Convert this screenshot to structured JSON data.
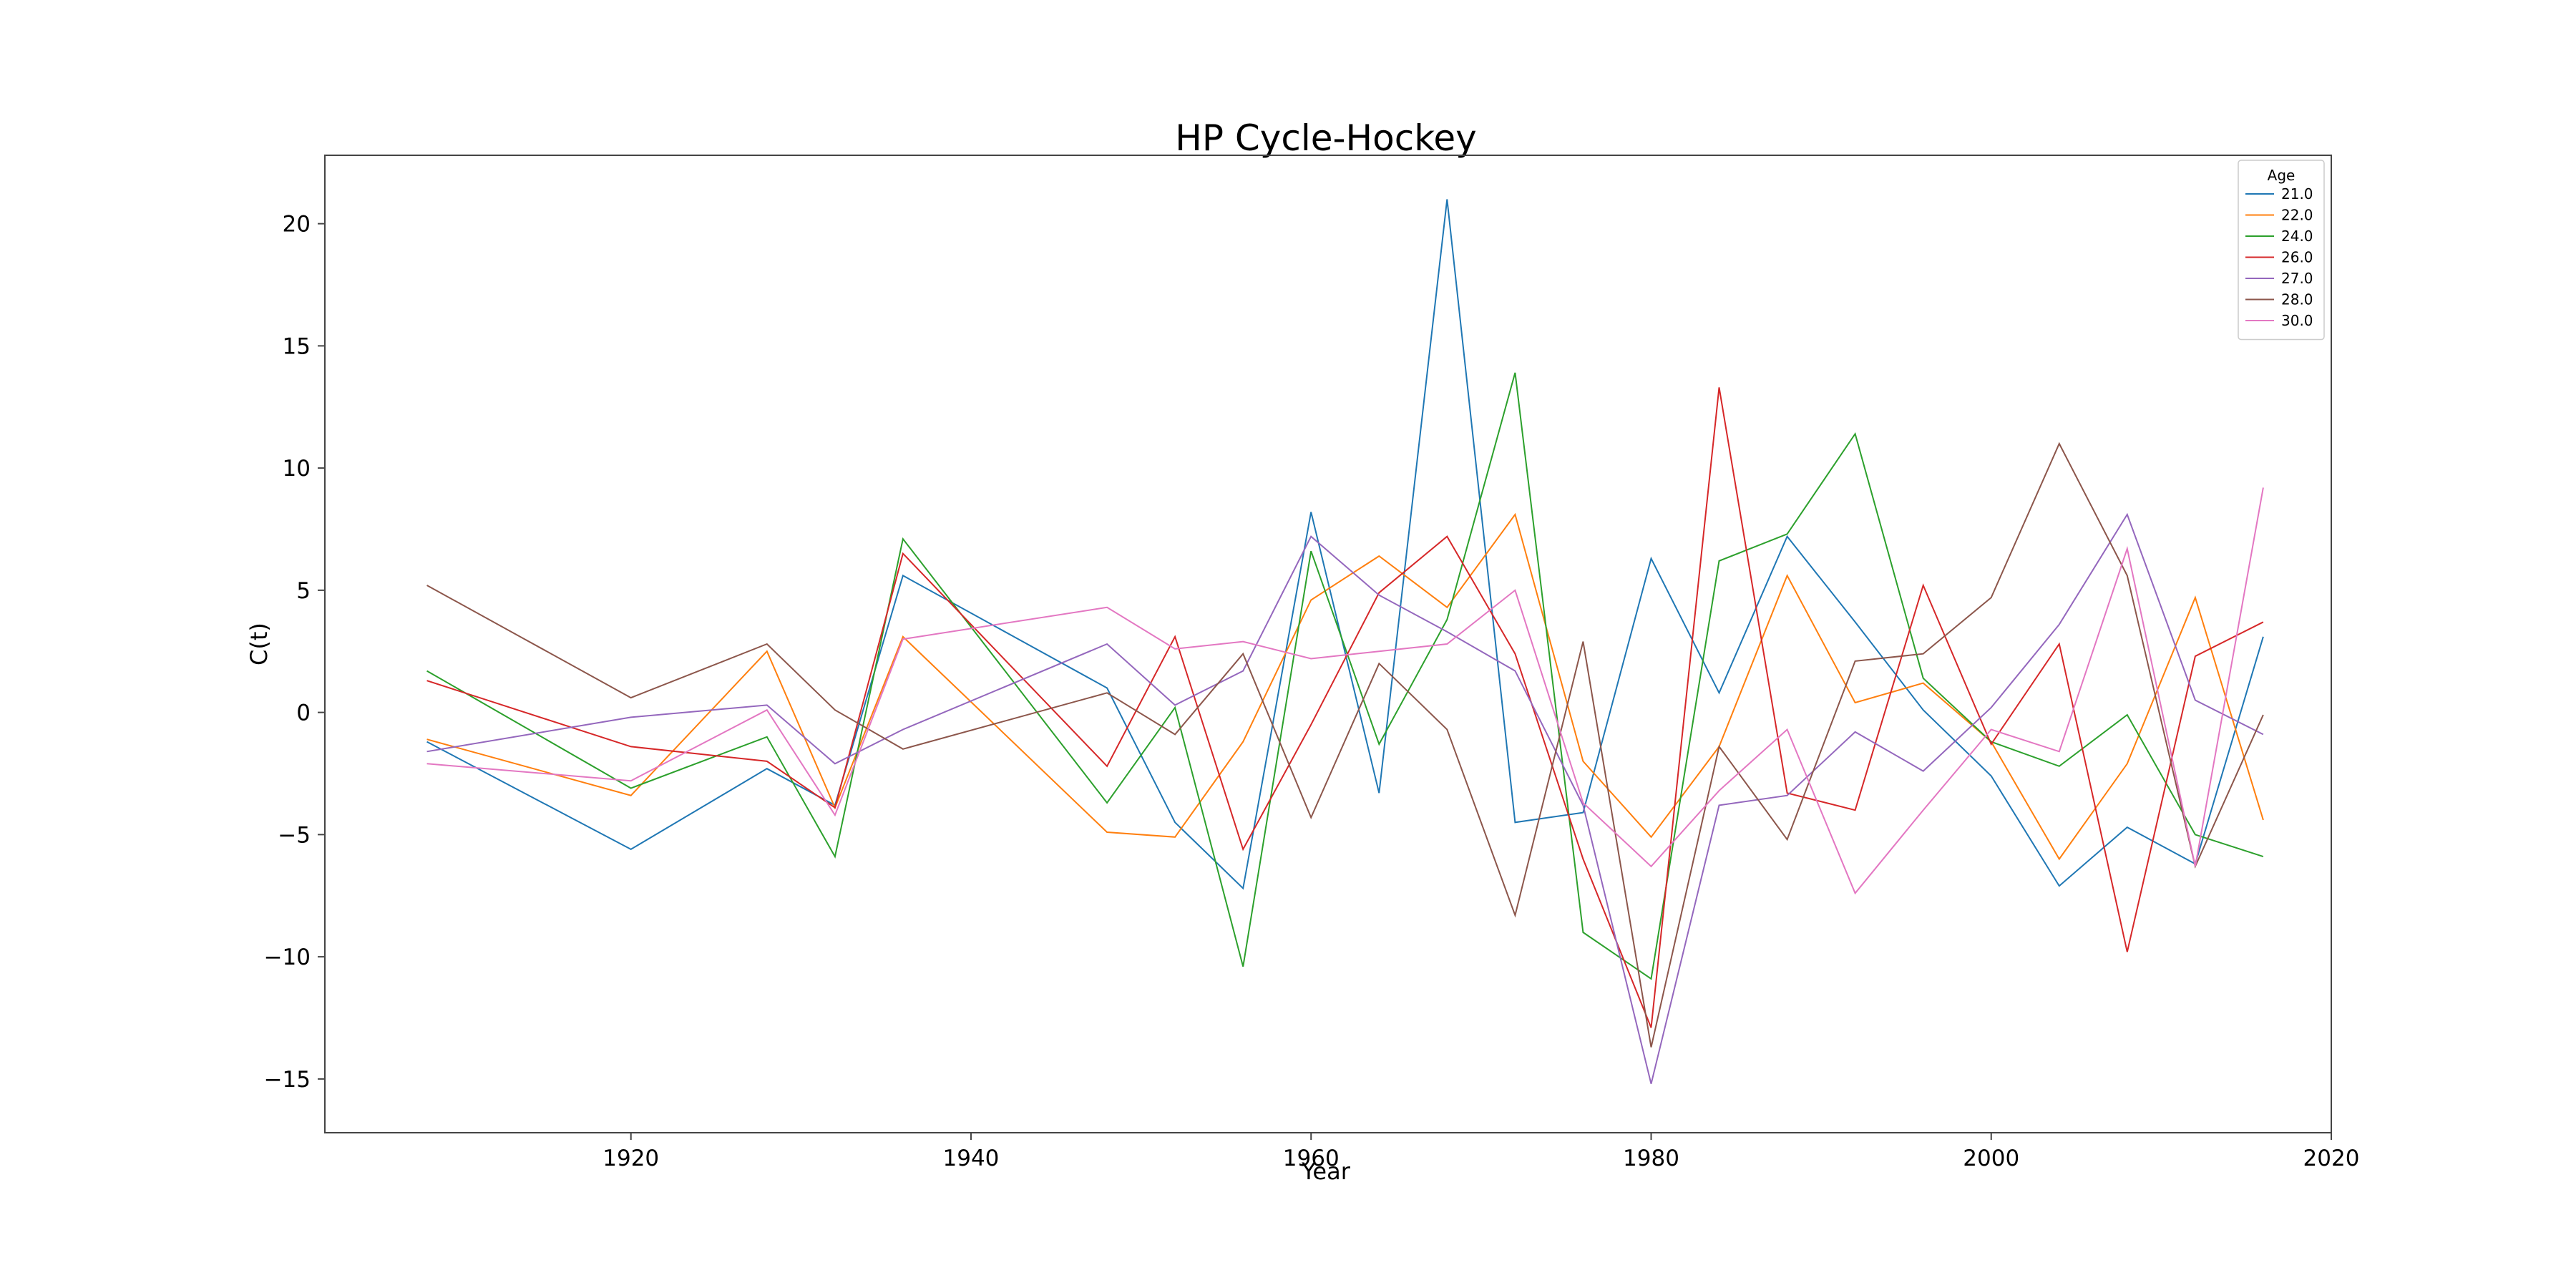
{
  "chart_data": {
    "type": "line",
    "title": "HP Cycle-Hockey",
    "xlabel": "Year",
    "ylabel": "C(t)",
    "xlim": [
      1902,
      2020
    ],
    "ylim": [
      -17.2,
      22.8
    ],
    "x_ticks": [
      1920,
      1940,
      1960,
      1980,
      2000,
      2020
    ],
    "y_ticks": [
      -15,
      -10,
      -5,
      0,
      5,
      10,
      15,
      20
    ],
    "grid": false,
    "legend": {
      "title": "Age",
      "position": "top-right"
    },
    "x": [
      1908,
      1920,
      1928,
      1932,
      1936,
      1948,
      1952,
      1956,
      1960,
      1964,
      1968,
      1972,
      1976,
      1980,
      1984,
      1988,
      1992,
      1996,
      2000,
      2004,
      2008,
      2012,
      2016
    ],
    "series": [
      {
        "name": "21.0",
        "color": "#1f77b4",
        "values": [
          -1.2,
          -5.6,
          -2.3,
          -3.8,
          5.6,
          1.0,
          -4.5,
          -7.2,
          8.2,
          -3.3,
          21.0,
          -4.5,
          -4.1,
          6.3,
          0.8,
          7.2,
          3.7,
          0.1,
          -2.6,
          -7.1,
          -4.7,
          -6.2,
          3.1
        ]
      },
      {
        "name": "22.0",
        "color": "#ff7f0e",
        "values": [
          -1.1,
          -3.4,
          2.5,
          -3.9,
          3.1,
          -4.9,
          -5.1,
          -1.2,
          4.6,
          6.4,
          4.3,
          8.1,
          -2.0,
          -5.1,
          -1.4,
          5.6,
          0.4,
          1.2,
          -1.2,
          -6.0,
          -2.1,
          4.7,
          -4.4
        ]
      },
      {
        "name": "24.0",
        "color": "#2ca02c",
        "values": [
          1.7,
          -3.1,
          -1.0,
          -5.9,
          7.1,
          -3.7,
          0.2,
          -10.4,
          6.6,
          -1.3,
          3.8,
          13.9,
          -9.0,
          -10.9,
          6.2,
          7.3,
          11.4,
          1.4,
          -1.2,
          -2.2,
          -0.1,
          -5.0,
          -5.9
        ]
      },
      {
        "name": "26.0",
        "color": "#d62728",
        "values": [
          1.3,
          -1.4,
          -2.0,
          -3.9,
          6.5,
          -2.2,
          3.1,
          -5.6,
          -0.5,
          4.9,
          7.2,
          2.4,
          -6.0,
          -12.9,
          13.3,
          -3.3,
          -4.0,
          5.2,
          -1.3,
          2.8,
          -9.8,
          2.3,
          3.7
        ]
      },
      {
        "name": "27.0",
        "color": "#9467bd",
        "values": [
          -1.6,
          -0.2,
          0.3,
          -2.1,
          -0.7,
          2.8,
          0.3,
          1.7,
          7.2,
          4.8,
          3.3,
          1.7,
          -3.8,
          -15.2,
          -3.8,
          -3.4,
          -0.8,
          -2.4,
          0.2,
          3.6,
          8.1,
          0.5,
          -0.9
        ]
      },
      {
        "name": "28.0",
        "color": "#8c564b",
        "values": [
          5.2,
          0.6,
          2.8,
          0.1,
          -1.5,
          0.8,
          -0.9,
          2.4,
          -4.3,
          2.0,
          -0.7,
          -8.3,
          2.9,
          -13.7,
          -1.4,
          -5.2,
          2.1,
          2.4,
          4.7,
          11.0,
          5.6,
          -6.3,
          -0.1
        ]
      },
      {
        "name": "30.0",
        "color": "#e377c2",
        "values": [
          -2.1,
          -2.8,
          0.1,
          -4.2,
          3.0,
          4.3,
          2.6,
          2.9,
          2.2,
          2.5,
          2.8,
          5.0,
          -3.7,
          -6.3,
          -3.2,
          -0.7,
          -7.4,
          -4.0,
          -0.7,
          -1.6,
          6.7,
          -6.3,
          9.2
        ]
      }
    ]
  }
}
